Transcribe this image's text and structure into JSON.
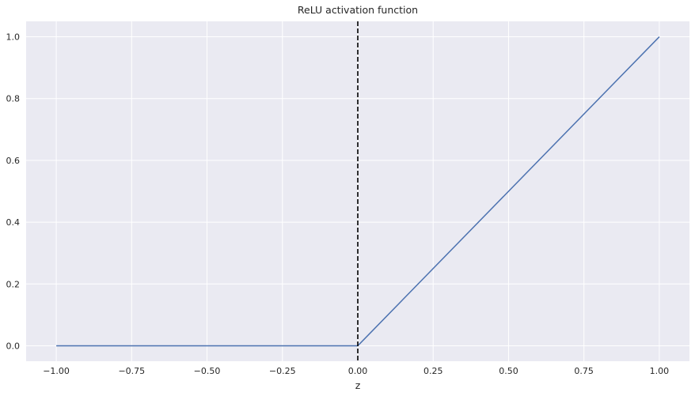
{
  "chart_data": {
    "type": "line",
    "title": "ReLU activation function",
    "xlabel": "z",
    "ylabel": "",
    "xlim": [
      -1.1,
      1.1
    ],
    "ylim": [
      -0.05,
      1.05
    ],
    "xticks": [
      -1.0,
      -0.75,
      -0.5,
      -0.25,
      0.0,
      0.25,
      0.5,
      0.75,
      1.0
    ],
    "xtick_labels": [
      "−1.00",
      "−0.75",
      "−0.50",
      "−0.25",
      "0.00",
      "0.25",
      "0.50",
      "0.75",
      "1.00"
    ],
    "yticks": [
      0.0,
      0.2,
      0.4,
      0.6,
      0.8,
      1.0
    ],
    "ytick_labels": [
      "0.0",
      "0.2",
      "0.4",
      "0.6",
      "0.8",
      "1.0"
    ],
    "grid": true,
    "background": "#eaeaf2",
    "grid_color": "#ffffff",
    "series": [
      {
        "color": "#4c72b0",
        "x": [
          -1.0,
          0.0,
          1.0
        ],
        "y": [
          0.0,
          0.0,
          1.0
        ]
      }
    ],
    "reference_lines": [
      {
        "orientation": "vertical",
        "x": 0.0,
        "style": "dashed",
        "color": "#000000"
      }
    ]
  }
}
